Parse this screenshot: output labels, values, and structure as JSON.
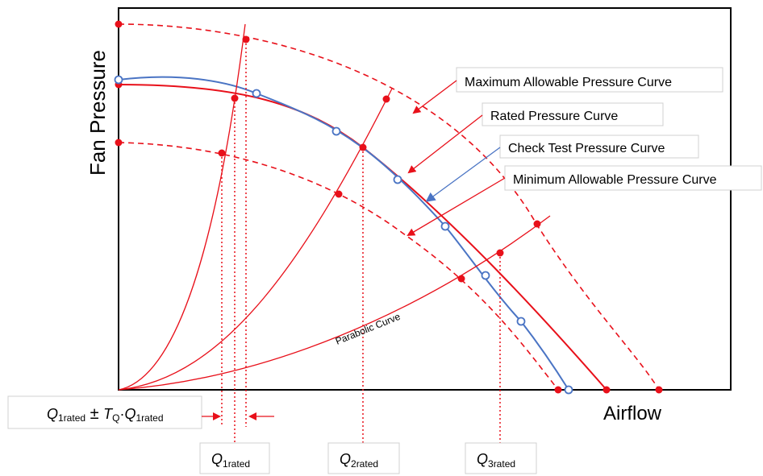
{
  "axes": {
    "y_label": "Fan Pressure",
    "x_label": "Airflow"
  },
  "curve_labels": {
    "maximum": "Maximum Allowable Pressure Curve",
    "rated": "Rated Pressure Curve",
    "check": "Check Test Pressure Curve",
    "minimum": "Minimum Allowable Pressure Curve",
    "parabolic": "Parabolic Curve"
  },
  "tolerance_label": {
    "q": "Q",
    "sub": "1rated",
    "op": " ± ",
    "t": "T",
    "t_sub": "Q",
    "dot": "·",
    "q2": "Q",
    "sub2": "1rated"
  },
  "flow_labels": [
    {
      "q": "Q",
      "sub": "1rated"
    },
    {
      "q": "Q",
      "sub": "2rated"
    },
    {
      "q": "Q",
      "sub": "3rated"
    }
  ],
  "colors": {
    "red": "#e8101a",
    "blue": "#4a74c4",
    "axis": "#000000",
    "box_border": "#d0d0d0"
  }
}
